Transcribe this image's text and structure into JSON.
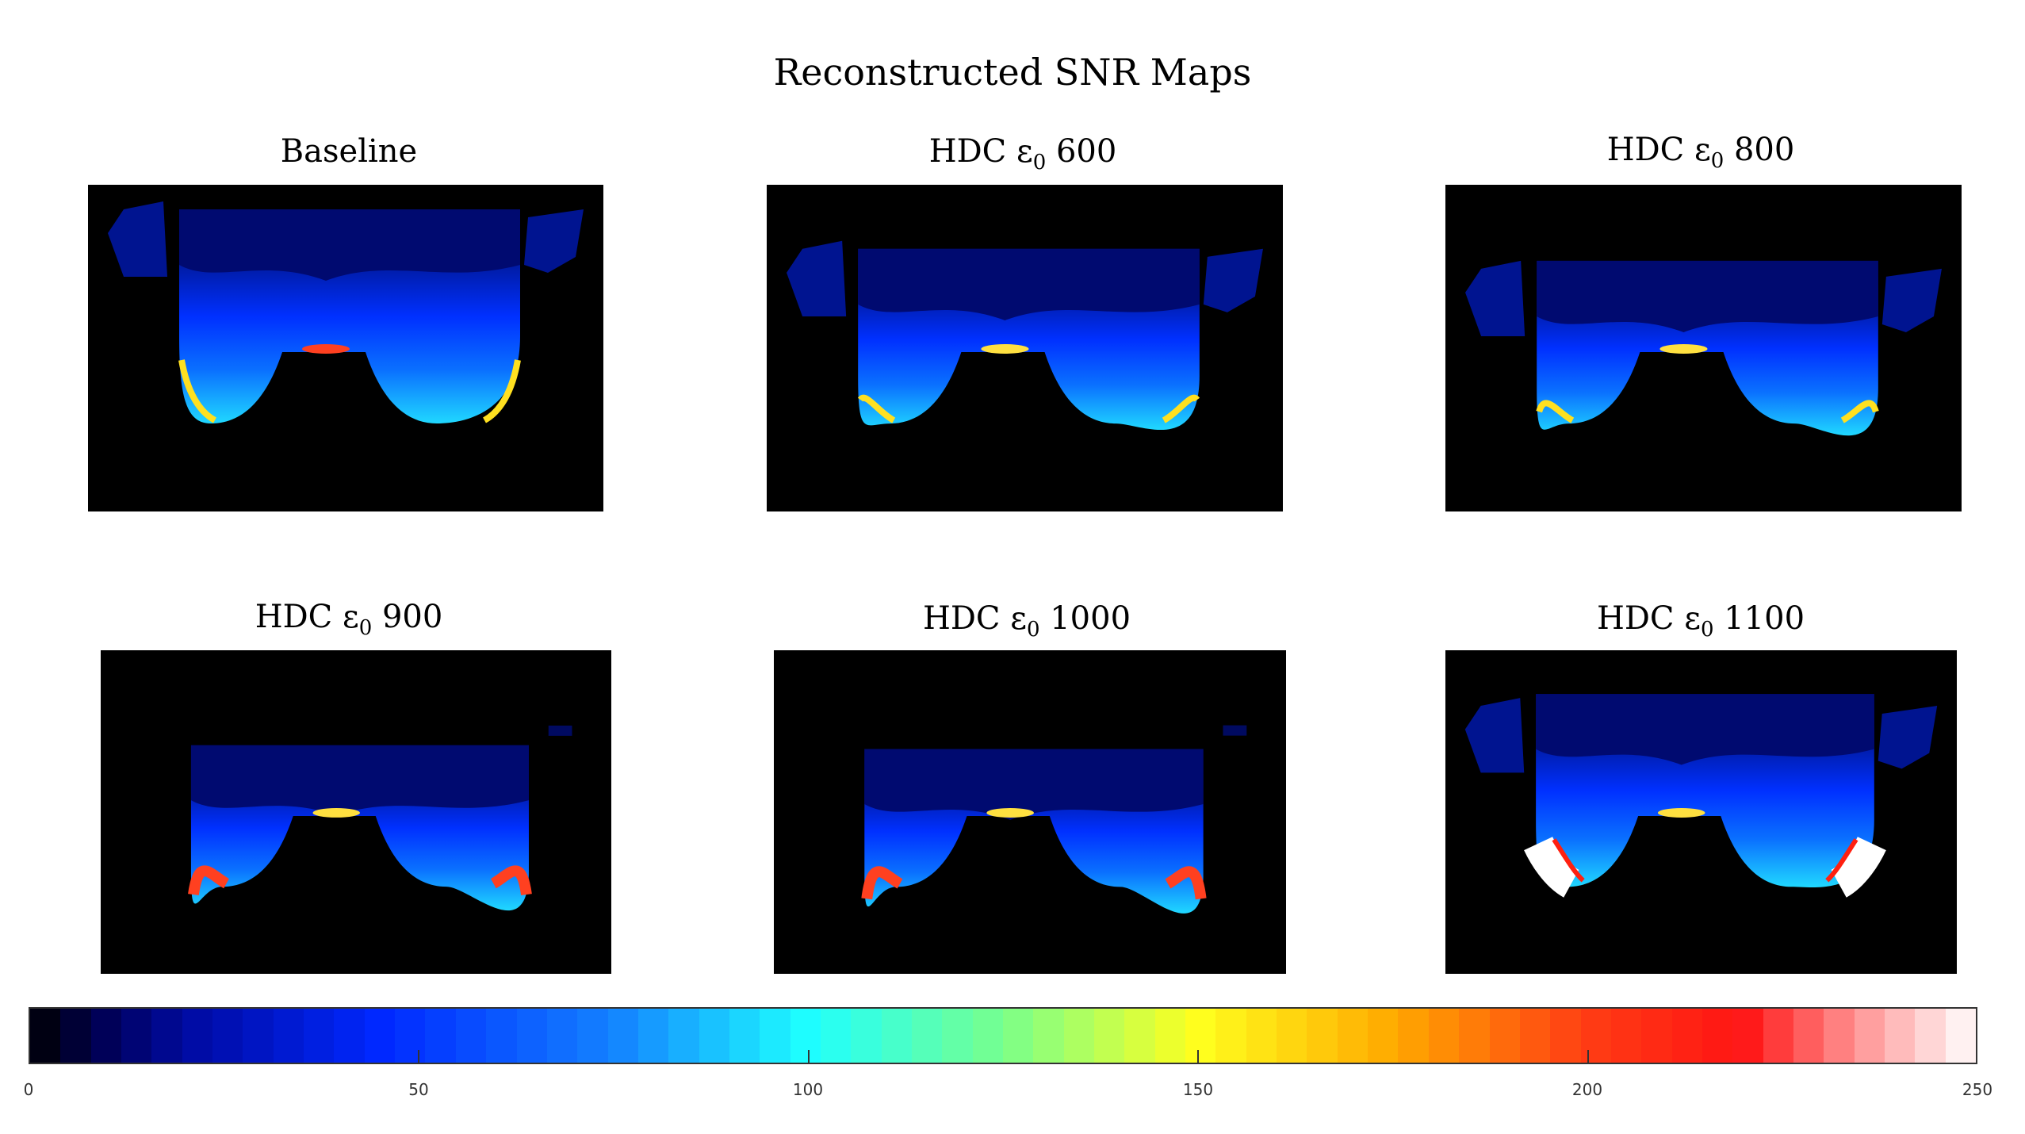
{
  "figure": {
    "title": "Reconstructed  SNR Maps",
    "panels": [
      {
        "label": "Baseline",
        "prefix": "Baseline",
        "subscript": "",
        "suffix": ""
      },
      {
        "label": "HDC ε0 600",
        "prefix": "HDC ε",
        "subscript": "0",
        "suffix": " 600"
      },
      {
        "label": "HDC ε0 800",
        "prefix": "HDC ε",
        "subscript": "0",
        "suffix": " 800"
      },
      {
        "label": "HDC ε0 900",
        "prefix": "HDC ε",
        "subscript": "0",
        "suffix": " 900"
      },
      {
        "label": "HDC ε0 1000",
        "prefix": "HDC ε",
        "subscript": "0",
        "suffix": " 1000"
      },
      {
        "label": "HDC ε0 1100",
        "prefix": "HDC ε",
        "subscript": "0",
        "suffix": " 1100"
      }
    ]
  },
  "colorbar": {
    "min": 0,
    "max": 250,
    "tick_labels": [
      "0",
      "50",
      "100",
      "150",
      "200",
      "250"
    ],
    "colormap": "jet",
    "colors": {
      "low": "#000000",
      "dark_blue": "#00008f",
      "blue": "#0030ff",
      "cyan": "#20ffff",
      "green": "#80ff80",
      "yellow": "#ffff20",
      "orange": "#ff8000",
      "red": "#ff1010",
      "high": "#ffffff"
    }
  }
}
